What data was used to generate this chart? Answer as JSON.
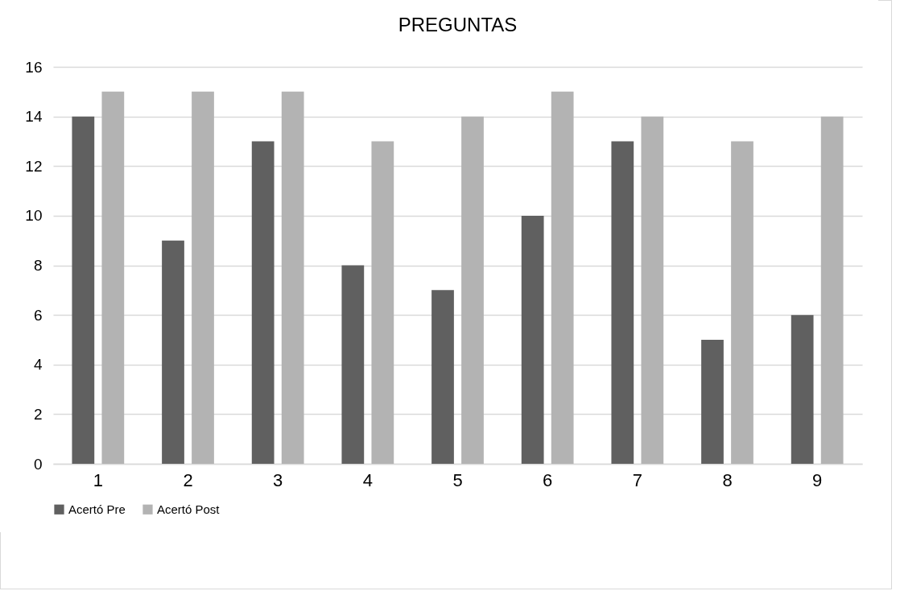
{
  "chart_data": {
    "type": "bar",
    "title": "PREGUNTAS",
    "categories": [
      "1",
      "2",
      "3",
      "4",
      "5",
      "6",
      "7",
      "8",
      "9"
    ],
    "series": [
      {
        "name": "Acertó Pre",
        "color": "#606060",
        "values": [
          14,
          9,
          13,
          8,
          7,
          10,
          13,
          5,
          6
        ]
      },
      {
        "name": "Acertó Post",
        "color": "#b3b3b3",
        "values": [
          15,
          15,
          15,
          13,
          14,
          15,
          14,
          13,
          14
        ]
      }
    ],
    "ylim": [
      0,
      16
    ],
    "yticks": [
      0,
      2,
      4,
      6,
      8,
      10,
      12,
      14,
      16
    ],
    "grid": "y",
    "legend": "bottom"
  }
}
